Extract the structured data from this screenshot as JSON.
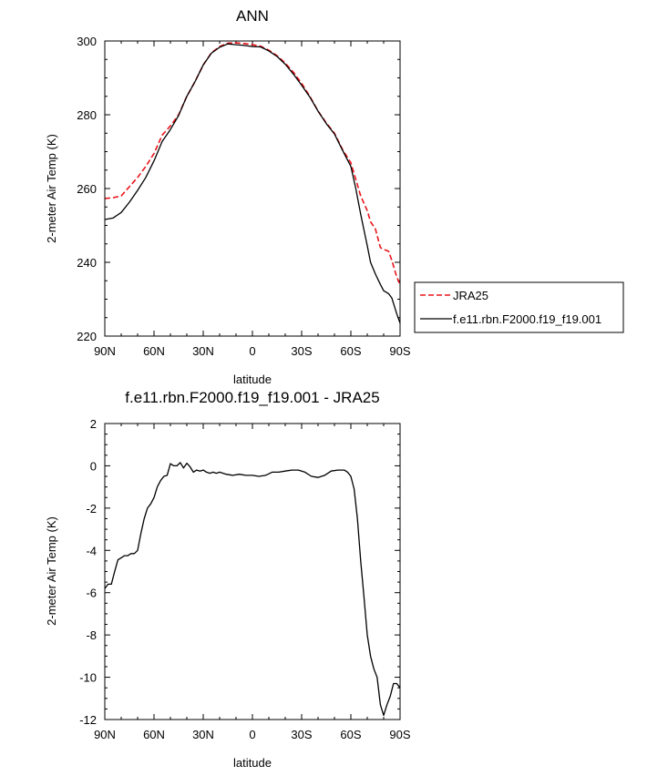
{
  "chart_data": [
    {
      "type": "line",
      "title": "ANN",
      "xlabel": "latitude",
      "ylabel": "2-meter Air Temp (K)",
      "xlim": [
        90,
        -90
      ],
      "ylim": [
        220,
        300
      ],
      "xticks": [
        90,
        60,
        30,
        0,
        -30,
        -60,
        -90
      ],
      "xtick_labels": [
        "90N",
        "60N",
        "30N",
        "0",
        "30S",
        "60S",
        "90S"
      ],
      "yticks": [
        220,
        240,
        260,
        280,
        300
      ],
      "ytick_labels": [
        "220",
        "240",
        "260",
        "280",
        "300"
      ],
      "legend_position": "right",
      "series": [
        {
          "name": "JRA25",
          "color": "#e8141a",
          "dash": "dashed",
          "x": [
            90,
            85,
            80,
            75,
            70,
            65,
            60,
            55,
            50,
            45,
            40,
            35,
            30,
            25,
            20,
            15,
            10,
            5,
            0,
            -5,
            -10,
            -15,
            -20,
            -25,
            -30,
            -35,
            -40,
            -45,
            -50,
            -55,
            -60,
            -63,
            -66,
            -70,
            -72,
            -75,
            -78,
            -80,
            -83,
            -85,
            -88,
            -90
          ],
          "y": [
            257.3,
            257.5,
            258.0,
            260.5,
            263.0,
            266.0,
            269.5,
            274.5,
            277.0,
            280.0,
            285.0,
            289.0,
            293.5,
            296.8,
            298.5,
            299.4,
            299.5,
            299.3,
            299.0,
            298.6,
            297.5,
            296.0,
            294.0,
            291.5,
            288.5,
            285.0,
            281.0,
            277.8,
            275.0,
            270.5,
            267.0,
            262.5,
            258.0,
            254.0,
            251.0,
            249.0,
            244.0,
            243.5,
            243.0,
            240.5,
            236.0,
            234.0
          ]
        },
        {
          "name": "f.e11.rbn.F2000.f19_f19.001",
          "color": "#000000",
          "dash": "solid",
          "x": [
            90,
            85,
            80,
            75,
            70,
            65,
            60,
            55,
            50,
            45,
            40,
            35,
            30,
            25,
            20,
            15,
            10,
            5,
            0,
            -5,
            -10,
            -15,
            -20,
            -25,
            -30,
            -35,
            -40,
            -45,
            -50,
            -55,
            -60,
            -63,
            -66,
            -70,
            -72,
            -75,
            -78,
            -80,
            -83,
            -85,
            -88,
            -90
          ],
          "y": [
            251.6,
            252.0,
            253.5,
            256.3,
            259.5,
            263.0,
            267.5,
            272.8,
            276.0,
            279.8,
            285.0,
            289.0,
            293.5,
            296.7,
            298.3,
            299.2,
            299.0,
            298.8,
            298.5,
            298.4,
            297.3,
            295.8,
            293.7,
            291.0,
            288.0,
            284.8,
            281.0,
            277.6,
            274.8,
            270.3,
            266.0,
            260.0,
            253.0,
            244.5,
            240.0,
            236.8,
            234.0,
            232.3,
            231.5,
            230.3,
            226.0,
            223.5
          ]
        }
      ]
    },
    {
      "type": "line",
      "title": "f.e11.rbn.F2000.f19_f19.001 - JRA25",
      "xlabel": "latitude",
      "ylabel": "2-meter Air Temp (K)",
      "xlim": [
        90,
        -90
      ],
      "ylim": [
        -12,
        2
      ],
      "xticks": [
        90,
        60,
        30,
        0,
        -30,
        -60,
        -90
      ],
      "xtick_labels": [
        "90N",
        "60N",
        "30N",
        "0",
        "30S",
        "60S",
        "90S"
      ],
      "yticks": [
        -12,
        -10,
        -8,
        -6,
        -4,
        -2,
        0,
        2
      ],
      "ytick_labels": [
        "-12",
        "-10",
        "-8",
        "-6",
        "-4",
        "-2",
        "0",
        "2"
      ],
      "series": [
        {
          "color": "#000000",
          "dash": "solid",
          "x": [
            90,
            88,
            86,
            84,
            82,
            80,
            78,
            76,
            74,
            72,
            70,
            68,
            66,
            64,
            62,
            60,
            58,
            56,
            54,
            52,
            50,
            48,
            46,
            44,
            42,
            40,
            38,
            36,
            34,
            32,
            30,
            28,
            26,
            24,
            22,
            20,
            16,
            12,
            8,
            4,
            0,
            -4,
            -8,
            -12,
            -16,
            -20,
            -24,
            -28,
            -32,
            -36,
            -40,
            -44,
            -48,
            -52,
            -56,
            -58,
            -60,
            -62,
            -64,
            -66,
            -68,
            -70,
            -72,
            -74,
            -76,
            -78,
            -80,
            -82,
            -84,
            -86,
            -88,
            -90
          ],
          "y": [
            -5.8,
            -5.6,
            -5.6,
            -5.0,
            -4.45,
            -4.35,
            -4.25,
            -4.25,
            -4.15,
            -4.15,
            -4.0,
            -3.2,
            -2.5,
            -2.0,
            -1.8,
            -1.5,
            -1.0,
            -0.7,
            -0.5,
            -0.45,
            0.1,
            0.0,
            0.0,
            0.15,
            -0.1,
            0.12,
            -0.05,
            -0.3,
            -0.2,
            -0.25,
            -0.2,
            -0.3,
            -0.35,
            -0.3,
            -0.35,
            -0.3,
            -0.4,
            -0.45,
            -0.4,
            -0.45,
            -0.45,
            -0.5,
            -0.45,
            -0.3,
            -0.3,
            -0.25,
            -0.2,
            -0.2,
            -0.3,
            -0.5,
            -0.55,
            -0.45,
            -0.25,
            -0.2,
            -0.2,
            -0.3,
            -0.5,
            -1.1,
            -2.5,
            -4.5,
            -6.2,
            -8.0,
            -9.0,
            -9.6,
            -10.0,
            -11.3,
            -11.8,
            -11.3,
            -10.9,
            -10.3,
            -10.3,
            -10.5
          ]
        }
      ]
    }
  ]
}
